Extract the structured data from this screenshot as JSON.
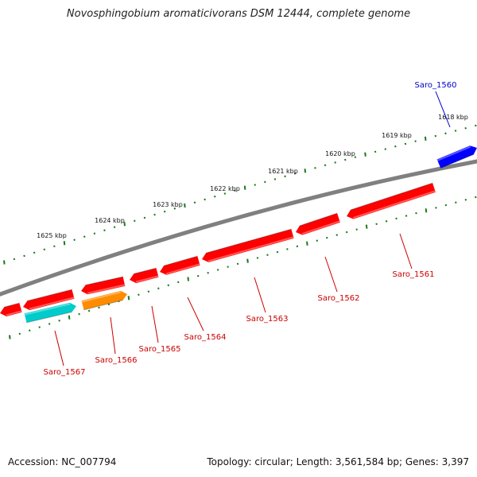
{
  "title": "Novosphingobium aromaticivorans DSM 12444, complete genome",
  "accession": "Accession: NC_007794",
  "topology": "Topology: circular; Length: 3,561,584 bp; Genes: 3,397",
  "colors": {
    "backbone": "#808080",
    "scale": "#1a7a1a",
    "gene_red": "#ff0000",
    "gene_blue": "#0000ff",
    "gene_cyan": "#00cccc",
    "gene_orange": "#ff8c00",
    "label_red": "#cc0000",
    "label_blue": "#0000cc"
  },
  "scale_labels": [
    {
      "kbp": 1618,
      "text": "1618 kbp"
    },
    {
      "kbp": 1619,
      "text": "1619 kbp"
    },
    {
      "kbp": 1620,
      "text": "1620 kbp"
    },
    {
      "kbp": 1621,
      "text": "1621 kbp"
    },
    {
      "kbp": 1622,
      "text": "1622 kbp"
    },
    {
      "kbp": 1623,
      "text": "1623 kbp"
    },
    {
      "kbp": 1624,
      "text": "1624 kbp"
    },
    {
      "kbp": 1625,
      "text": "1625 kbp"
    }
  ],
  "genes": [
    {
      "name": "Saro_1560",
      "color": "gene_blue"
    },
    {
      "name": "Saro_1561",
      "color": "gene_red"
    },
    {
      "name": "Saro_1562",
      "color": "gene_red"
    },
    {
      "name": "Saro_1563",
      "color": "gene_red"
    },
    {
      "name": "Saro_1564",
      "color": "gene_red"
    },
    {
      "name": "Saro_1565",
      "color": "gene_red"
    },
    {
      "name": "Saro_1566",
      "color": "gene_orange"
    },
    {
      "name": "Saro_1567",
      "color": "gene_cyan"
    }
  ]
}
